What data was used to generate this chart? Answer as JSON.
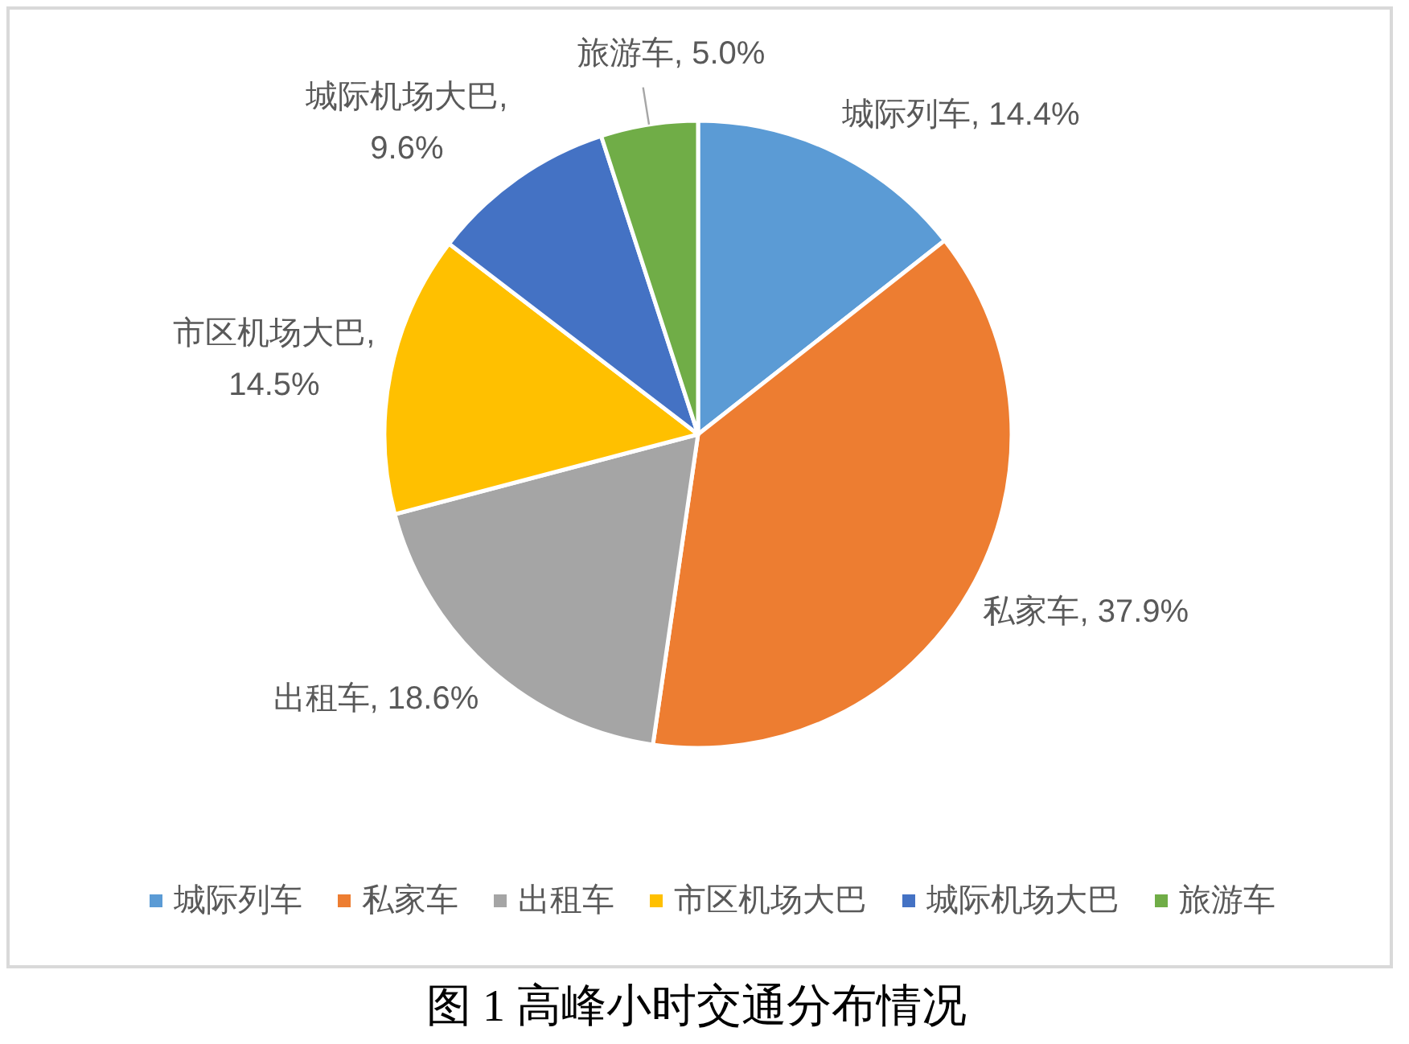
{
  "chart_data": {
    "type": "pie",
    "title": "图 1 高峰小时交通分布情况",
    "categories": [
      "城际列车",
      "私家车",
      "出租车",
      "市区机场大巴",
      "城际机场大巴",
      "旅游车"
    ],
    "values": [
      14.4,
      37.9,
      18.6,
      14.5,
      9.6,
      5.0
    ],
    "colors": [
      "#5b9bd5",
      "#ed7d31",
      "#a5a5a5",
      "#ffc000",
      "#4472c4",
      "#70ad47"
    ],
    "value_labels": [
      "城际列车, 14.4%",
      "私家车, 37.9%",
      "出租车, 18.6%",
      "市区机场大巴, 14.5%",
      "城际机场大巴, 9.6%",
      "旅游车, 5.0%"
    ],
    "legend": "bottom"
  }
}
